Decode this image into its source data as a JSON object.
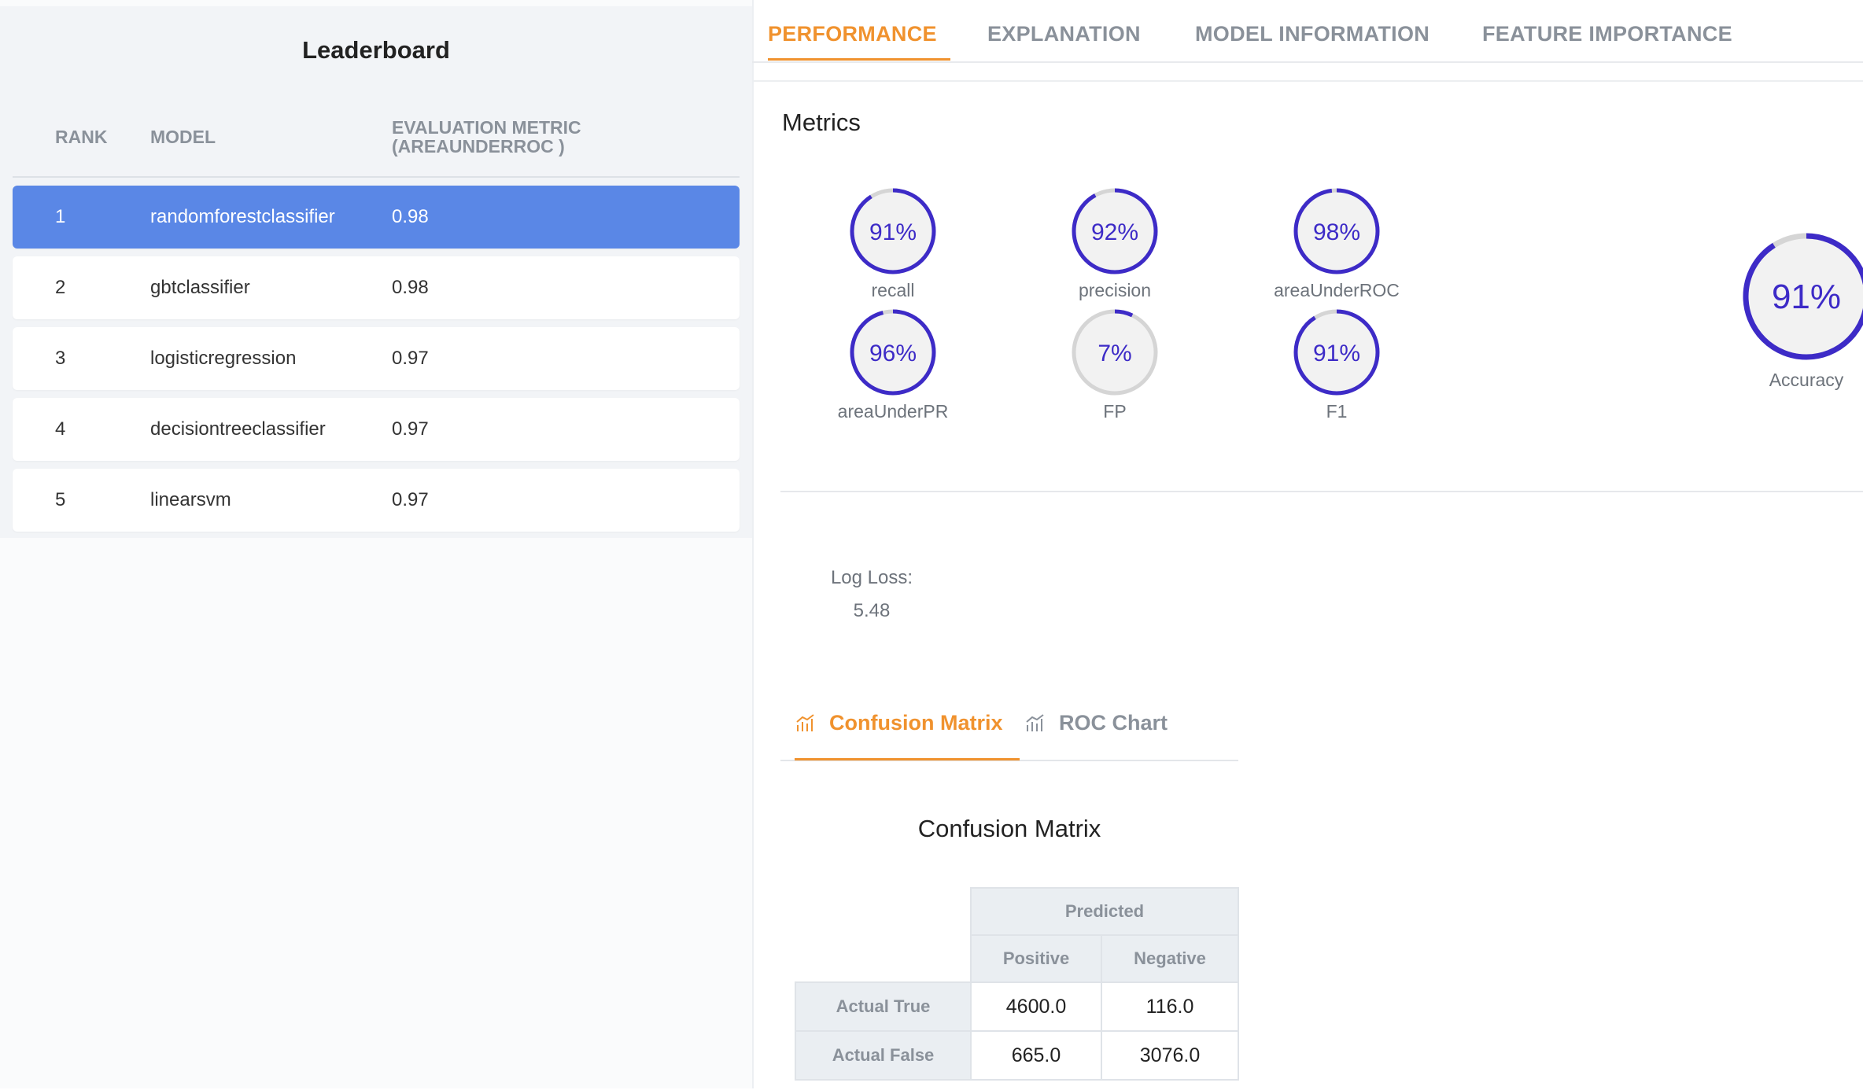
{
  "leaderboard": {
    "title": "Leaderboard",
    "headers": {
      "rank": "RANK",
      "model": "MODEL",
      "metric_line1": "EVALUATION METRIC",
      "metric_line2": "(AREAUNDERROC )"
    },
    "rows": [
      {
        "rank": "1",
        "model": "randomforestclassifier",
        "metric": "0.98",
        "selected": true
      },
      {
        "rank": "2",
        "model": "gbtclassifier",
        "metric": "0.98",
        "selected": false
      },
      {
        "rank": "3",
        "model": "logisticregression",
        "metric": "0.97",
        "selected": false
      },
      {
        "rank": "4",
        "model": "decisiontreeclassifier",
        "metric": "0.97",
        "selected": false
      },
      {
        "rank": "5",
        "model": "linearsvm",
        "metric": "0.97",
        "selected": false
      }
    ]
  },
  "tabs": [
    {
      "label": "PERFORMANCE",
      "active": true
    },
    {
      "label": "EXPLANATION",
      "active": false
    },
    {
      "label": "MODEL INFORMATION",
      "active": false
    },
    {
      "label": "FEATURE IMPORTANCE",
      "active": false
    }
  ],
  "metrics": {
    "title": "Metrics",
    "items": [
      {
        "label": "recall",
        "value_text": "91%",
        "value": 0.91
      },
      {
        "label": "precision",
        "value_text": "92%",
        "value": 0.92
      },
      {
        "label": "areaUnderROC",
        "value_text": "98%",
        "value": 0.98
      },
      {
        "label": "areaUnderPR",
        "value_text": "96%",
        "value": 0.96
      },
      {
        "label": "FP",
        "value_text": "7%",
        "value": 0.07
      },
      {
        "label": "F1",
        "value_text": "91%",
        "value": 0.91
      }
    ],
    "accuracy": {
      "label": "Accuracy",
      "value_text": "91%",
      "value": 0.91
    }
  },
  "log_loss": {
    "label": "Log Loss:",
    "value": "5.48"
  },
  "subtabs": [
    {
      "label": "Confusion Matrix",
      "active": true,
      "icon": "bar-chart-icon"
    },
    {
      "label": "ROC Chart",
      "active": false,
      "icon": "bar-chart-icon"
    }
  ],
  "confusion_matrix": {
    "title": "Confusion Matrix",
    "predicted_label": "Predicted",
    "columns": [
      "Positive",
      "Negative"
    ],
    "rows": [
      {
        "label": "Actual True",
        "values": [
          "4600.0",
          "116.0"
        ]
      },
      {
        "label": "Actual False",
        "values": [
          "665.0",
          "3076.0"
        ]
      }
    ]
  },
  "colors": {
    "accent_orange": "#f0922e",
    "selected_row": "#5a87e6",
    "gauge_arc": "#3d2bc7",
    "gauge_track": "#d5d5d5"
  }
}
